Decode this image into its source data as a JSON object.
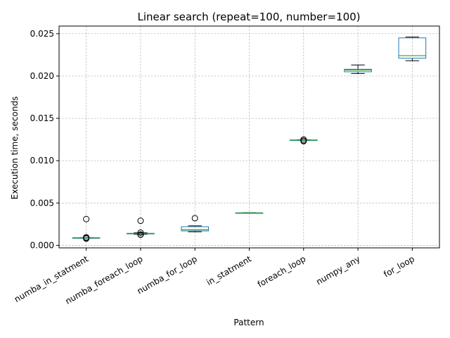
{
  "chart_data": {
    "type": "box",
    "title": "Linear search (repeat=100, number=100)",
    "xlabel": "Pattern",
    "ylabel": "Execution time, seconds",
    "ylim": [
      -0.0003,
      0.0259
    ],
    "yticks": [
      0.0,
      0.005,
      0.01,
      0.015,
      0.02,
      0.025
    ],
    "ytick_labels": [
      "0.000",
      "0.005",
      "0.010",
      "0.015",
      "0.020",
      "0.025"
    ],
    "grid": true,
    "categories": [
      "numba_in_statment",
      "numba_foreach_loop",
      "numba_for_loop",
      "in_statment",
      "foreach_loop",
      "numpy_any",
      "for_loop"
    ],
    "boxes": [
      {
        "whisker_low": 0.00085,
        "q1": 0.00086,
        "median": 0.00088,
        "q3": 0.0009,
        "whisker_high": 0.00092,
        "outliers": [
          0.0031,
          0.00095,
          0.00085,
          0.0008
        ]
      },
      {
        "whisker_low": 0.0013,
        "q1": 0.00135,
        "median": 0.00138,
        "q3": 0.00142,
        "whisker_high": 0.00148,
        "outliers": [
          0.0029,
          0.0015,
          0.00128,
          0.00125
        ]
      },
      {
        "whisker_low": 0.0016,
        "q1": 0.0017,
        "median": 0.00185,
        "q3": 0.0022,
        "whisker_high": 0.0023,
        "outliers": [
          0.0032
        ]
      },
      {
        "whisker_low": 0.0038,
        "q1": 0.00381,
        "median": 0.00382,
        "q3": 0.00384,
        "whisker_high": 0.00386,
        "outliers": []
      },
      {
        "whisker_low": 0.01238,
        "q1": 0.0124,
        "median": 0.01242,
        "q3": 0.01245,
        "whisker_high": 0.01247,
        "outliers": [
          0.0125,
          0.01235,
          0.0123
        ]
      },
      {
        "whisker_low": 0.0203,
        "q1": 0.0205,
        "median": 0.0207,
        "q3": 0.0208,
        "whisker_high": 0.0213,
        "outliers": []
      },
      {
        "whisker_low": 0.0218,
        "q1": 0.0221,
        "median": 0.0224,
        "q3": 0.0245,
        "whisker_high": 0.0246,
        "outliers": []
      }
    ],
    "colors": {
      "box": "#1f77b4",
      "median": "#2ca02c",
      "whisker": "#000000",
      "grid": "#b0b0b0"
    }
  }
}
